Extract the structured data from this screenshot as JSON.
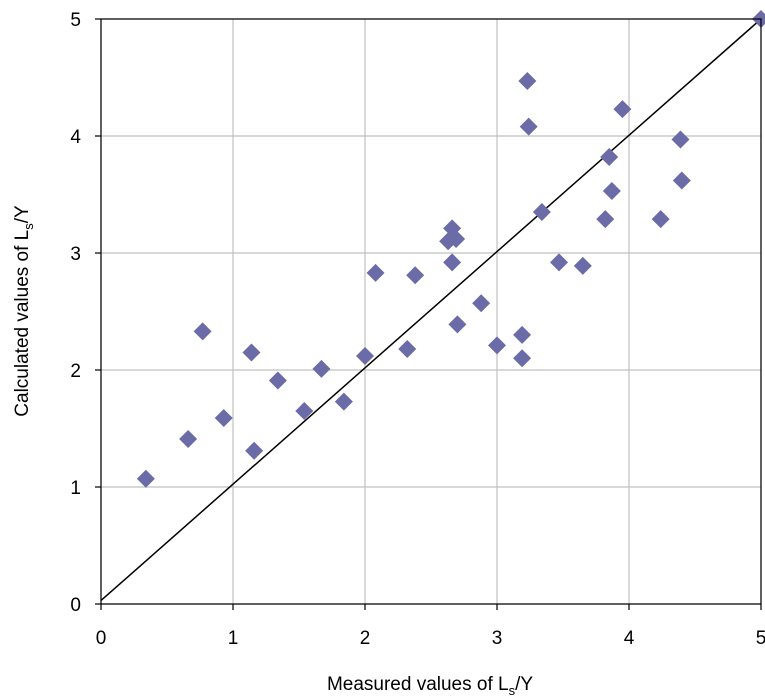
{
  "chart_data": {
    "type": "scatter",
    "title": "",
    "xlabel": {
      "pre": "Measured values of L",
      "sub": "s",
      "post": "/Y"
    },
    "ylabel": {
      "pre": "Calculated values of L",
      "sub": "s",
      "post": "/Y"
    },
    "xlim": [
      0,
      5
    ],
    "ylim": [
      0,
      5
    ],
    "xticks": [
      "0",
      "1",
      "2",
      "3",
      "4",
      "5"
    ],
    "yticks": [
      "0",
      "1",
      "2",
      "3",
      "4",
      "5"
    ],
    "grid": true,
    "legend": "none",
    "marker": "diamond",
    "marker_color": "#6B6BA8",
    "reference_line": {
      "from": [
        0,
        0.03
      ],
      "to": [
        5,
        5
      ]
    },
    "points": [
      [
        0.34,
        1.07
      ],
      [
        0.66,
        1.41
      ],
      [
        0.77,
        2.33
      ],
      [
        0.93,
        1.59
      ],
      [
        1.14,
        2.15
      ],
      [
        1.16,
        1.31
      ],
      [
        1.34,
        1.91
      ],
      [
        1.54,
        1.65
      ],
      [
        1.67,
        2.01
      ],
      [
        1.84,
        1.73
      ],
      [
        2.0,
        2.12
      ],
      [
        2.08,
        2.83
      ],
      [
        2.32,
        2.18
      ],
      [
        2.38,
        2.81
      ],
      [
        2.63,
        3.1
      ],
      [
        2.66,
        3.21
      ],
      [
        2.66,
        2.92
      ],
      [
        2.69,
        3.12
      ],
      [
        2.7,
        2.39
      ],
      [
        2.88,
        2.57
      ],
      [
        3.0,
        2.21
      ],
      [
        3.19,
        2.3
      ],
      [
        3.19,
        2.1
      ],
      [
        3.23,
        4.47
      ],
      [
        3.24,
        4.08
      ],
      [
        3.34,
        3.35
      ],
      [
        3.47,
        2.92
      ],
      [
        3.65,
        2.89
      ],
      [
        3.82,
        3.29
      ],
      [
        3.85,
        3.82
      ],
      [
        3.87,
        3.53
      ],
      [
        3.95,
        4.23
      ],
      [
        4.24,
        3.29
      ],
      [
        4.39,
        3.97
      ],
      [
        4.4,
        3.62
      ],
      [
        5.0,
        5.0
      ]
    ]
  }
}
